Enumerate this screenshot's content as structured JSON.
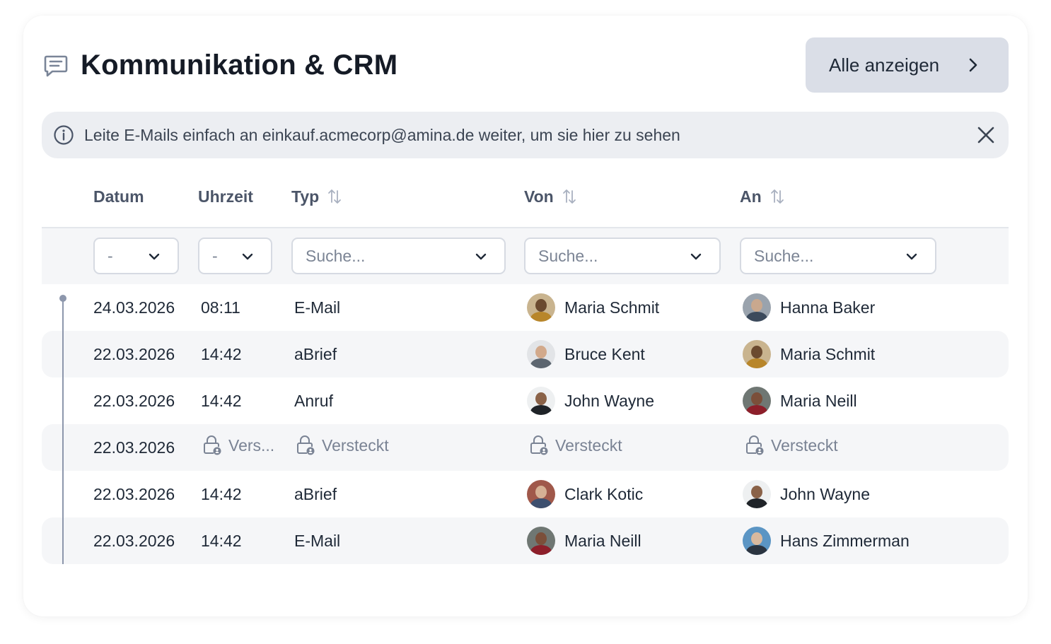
{
  "header": {
    "title": "Kommunikation & CRM",
    "show_all_label": "Alle anzeigen"
  },
  "banner": {
    "text": "Leite E-Mails einfach an einkauf.acmecorp@amina.de weiter, um sie hier zu sehen"
  },
  "columns": {
    "date": "Datum",
    "time": "Uhrzeit",
    "type": "Typ",
    "from": "Von",
    "to": "An"
  },
  "filters": {
    "date": "-",
    "time": "-",
    "type_placeholder": "Suche...",
    "from_placeholder": "Suche...",
    "to_placeholder": "Suche..."
  },
  "rows": [
    {
      "date": "24.03.2026",
      "time": "08:11",
      "type": "E-Mail",
      "from": "Maria Schmit",
      "to": "Hanna Baker"
    },
    {
      "date": "22.03.2026",
      "time": "14:42",
      "type": "aBrief",
      "from": "Bruce Kent",
      "to": "Maria Schmit"
    },
    {
      "date": "22.03.2026",
      "time": "14:42",
      "type": "Anruf",
      "from": "John Wayne",
      "to": "Maria Neill"
    },
    {
      "date": "22.03.2026",
      "time": "Vers...",
      "type": "Versteckt",
      "from": "Versteckt",
      "to": "Versteckt",
      "hidden": true
    },
    {
      "date": "22.03.2026",
      "time": "14:42",
      "type": "aBrief",
      "from": "Clark Kotic",
      "to": "John Wayne"
    },
    {
      "date": "22.03.2026",
      "time": "14:42",
      "type": "E-Mail",
      "from": "Maria Neill",
      "to": "Hans Zimmerman"
    }
  ],
  "colors": {
    "accent_button": "#dadee7",
    "banner_bg": "#eceef2",
    "row_alt_bg": "#f5f6f8",
    "timeline": "#8d97ac",
    "title": "#151b26"
  },
  "icons": {
    "header": "chat-lines-icon",
    "show_all": "chevron-right-icon",
    "banner": "info-icon",
    "close": "close-icon",
    "sort": "sort-arrows-icon",
    "dropdown": "chevron-down-icon",
    "hidden": "lock-user-icon"
  }
}
